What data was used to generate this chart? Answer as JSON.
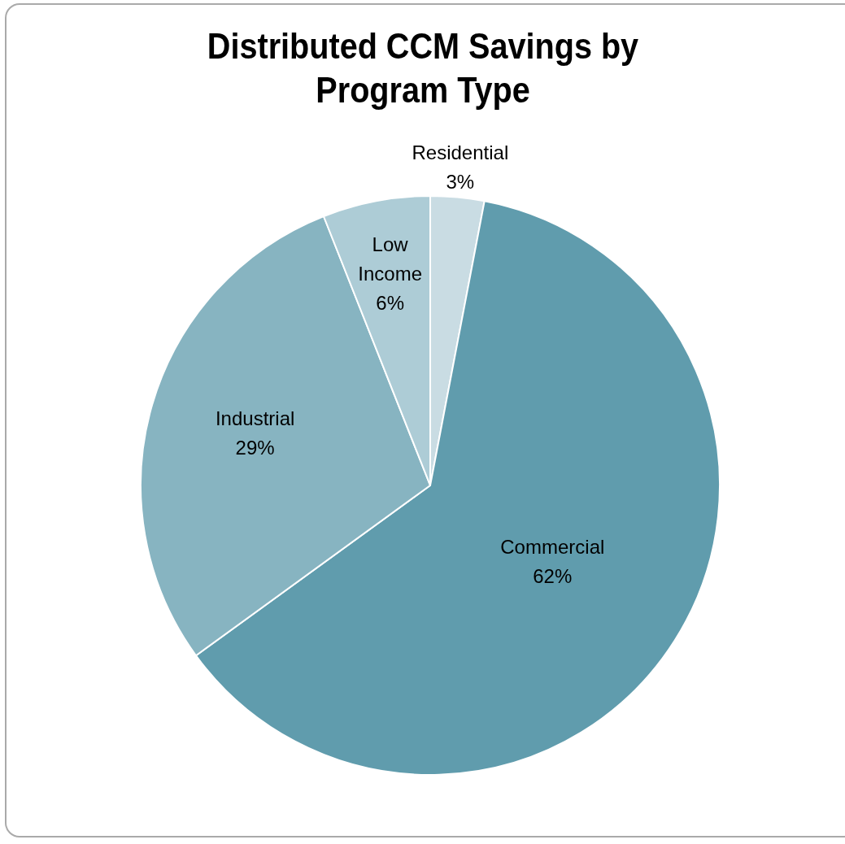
{
  "chart_data": {
    "type": "pie",
    "title": "Distributed CCM Savings by Program Type",
    "categories": [
      "Residential",
      "Commercial",
      "Industrial",
      "Low Income"
    ],
    "values": [
      3,
      62,
      29,
      6
    ],
    "colors": [
      "#c9dce3",
      "#609cad",
      "#87b4c1",
      "#adccd6"
    ],
    "value_labels": [
      "3%",
      "62%",
      "29%",
      "6%"
    ],
    "legend": false
  }
}
